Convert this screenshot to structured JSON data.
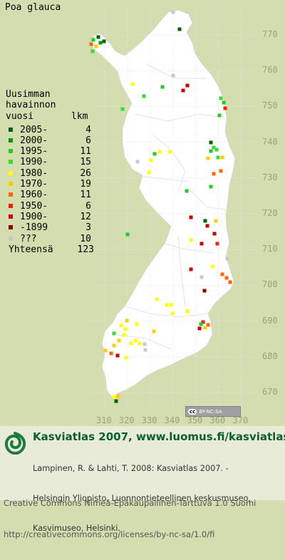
{
  "species": "Poa glauca",
  "legend": {
    "header": [
      "Uusimman",
      "havainnon",
      "vuosi"
    ],
    "count_header": "lkm",
    "rows": [
      {
        "label": "2005-",
        "count": "4",
        "color": "#006400"
      },
      {
        "label": "2000-",
        "count": "6",
        "color": "#009900"
      },
      {
        "label": "1995-",
        "count": "11",
        "color": "#22cc22"
      },
      {
        "label": "1990-",
        "count": "15",
        "color": "#33dd33"
      },
      {
        "label": "1980-",
        "count": "26",
        "color": "#ffff00"
      },
      {
        "label": "1970-",
        "count": "19",
        "color": "#ffcc00"
      },
      {
        "label": "1960-",
        "count": "11",
        "color": "#ff6600"
      },
      {
        "label": "1950-",
        "count": "6",
        "color": "#ee2200"
      },
      {
        "label": "1900-",
        "count": "12",
        "color": "#cc0000"
      },
      {
        "label": "-1899",
        "count": "3",
        "color": "#880000"
      },
      {
        "label": "???",
        "count": "10",
        "color": "#c8c8c8"
      }
    ],
    "total_label": "Yhteensä",
    "total_count": "123"
  },
  "axes": {
    "y_ticks": [
      "770",
      "760",
      "750",
      "740",
      "730",
      "720",
      "710",
      "700",
      "690",
      "680",
      "670"
    ],
    "x_ticks": [
      "310",
      "320",
      "330",
      "340",
      "350",
      "360",
      "370"
    ]
  },
  "colors": {
    "background": "#d4ddaf",
    "land": "#ffffff",
    "grid": "#dcdcdc",
    "footer": "#e8ebd8",
    "title": "#0c5e2f"
  },
  "license_badge": "BY-NC-SA",
  "footer": {
    "site_title": "Kasviatlas 2007, www.luomus.fi/kasviatlas",
    "citation": [
      "Lampinen, R. & Lahti, T. 2008: Kasviatlas 2007. -",
      "Helsingin Yliopisto, Luonnontieteellinen keskusmuseo,",
      "Kasvimuseo, Helsinki."
    ],
    "license": [
      "Creative Commons Nimeä-Epäkaupallinen-Tarttuva 1.0 Suomi",
      "http://creativecommons.org/licenses/by-nc-sa/1.0/fi"
    ]
  },
  "observations": [
    {
      "x": 252,
      "y": 41,
      "period": "2005-"
    },
    {
      "x": 243,
      "y": 17,
      "period": "???"
    },
    {
      "x": 138,
      "y": 52,
      "period": "2005-"
    },
    {
      "x": 131,
      "y": 56,
      "period": "1995-"
    },
    {
      "x": 146,
      "y": 58,
      "period": "2005-"
    },
    {
      "x": 128,
      "y": 62,
      "period": "1960-"
    },
    {
      "x": 135,
      "y": 65,
      "period": "1970-"
    },
    {
      "x": 130,
      "y": 72,
      "period": "1990-"
    },
    {
      "x": 141,
      "y": 60,
      "period": "2000-"
    },
    {
      "x": 186,
      "y": 118,
      "period": "1980-"
    },
    {
      "x": 228,
      "y": 122,
      "period": "1995-"
    },
    {
      "x": 243,
      "y": 106,
      "period": "???"
    },
    {
      "x": 263,
      "y": 120,
      "period": "1900-"
    },
    {
      "x": 257,
      "y": 127,
      "period": "1900-"
    },
    {
      "x": 202,
      "y": 135,
      "period": "1990-"
    },
    {
      "x": 310,
      "y": 138,
      "period": "1990-"
    },
    {
      "x": 314,
      "y": 144,
      "period": "1995-"
    },
    {
      "x": 316,
      "y": 152,
      "period": "1950-"
    },
    {
      "x": 172,
      "y": 153,
      "period": "1990-"
    },
    {
      "x": 308,
      "y": 162,
      "period": "1995-"
    },
    {
      "x": 296,
      "y": 200,
      "period": "2005-"
    },
    {
      "x": 300,
      "y": 207,
      "period": "1990-"
    },
    {
      "x": 296,
      "y": 212,
      "period": "1995-"
    },
    {
      "x": 304,
      "y": 210,
      "period": "1990-"
    },
    {
      "x": 292,
      "y": 222,
      "period": "1970-"
    },
    {
      "x": 306,
      "y": 221,
      "period": "1990-"
    },
    {
      "x": 312,
      "y": 221,
      "period": "1970-"
    },
    {
      "x": 310,
      "y": 240,
      "period": "1960-"
    },
    {
      "x": 300,
      "y": 244,
      "period": "1960-"
    },
    {
      "x": 296,
      "y": 262,
      "period": "1995-"
    },
    {
      "x": 217,
      "y": 216,
      "period": "1995-"
    },
    {
      "x": 224,
      "y": 213,
      "period": "1980-"
    },
    {
      "x": 238,
      "y": 213,
      "period": "1980-"
    },
    {
      "x": 212,
      "y": 225,
      "period": "1980-"
    },
    {
      "x": 193,
      "y": 227,
      "period": "???"
    },
    {
      "x": 209,
      "y": 242,
      "period": "1980-"
    },
    {
      "x": 262,
      "y": 268,
      "period": "1995-"
    },
    {
      "x": 268,
      "y": 305,
      "period": "1900-"
    },
    {
      "x": 288,
      "y": 310,
      "period": "2005-"
    },
    {
      "x": 303,
      "y": 310,
      "period": "1970-"
    },
    {
      "x": 291,
      "y": 317,
      "period": "1900-"
    },
    {
      "x": 301,
      "y": 328,
      "period": "1900-"
    },
    {
      "x": 268,
      "y": 337,
      "period": "1980-"
    },
    {
      "x": 283,
      "y": 342,
      "period": "1900-"
    },
    {
      "x": 305,
      "y": 342,
      "period": "1950-"
    },
    {
      "x": 179,
      "y": 329,
      "period": "1995-"
    },
    {
      "x": 319,
      "y": 363,
      "period": "???"
    },
    {
      "x": 298,
      "y": 374,
      "period": "1980-"
    },
    {
      "x": 312,
      "y": 385,
      "period": "1960-"
    },
    {
      "x": 318,
      "y": 390,
      "period": "1960-"
    },
    {
      "x": 323,
      "y": 396,
      "period": "1960-"
    },
    {
      "x": 268,
      "y": 378,
      "period": "1900-"
    },
    {
      "x": 283,
      "y": 389,
      "period": "???"
    },
    {
      "x": 287,
      "y": 408,
      "period": "-1899"
    },
    {
      "x": 234,
      "y": 428,
      "period": "1980-"
    },
    {
      "x": 240,
      "y": 428,
      "period": "1980-"
    },
    {
      "x": 220,
      "y": 420,
      "period": "1980-"
    },
    {
      "x": 242,
      "y": 440,
      "period": "1980-"
    },
    {
      "x": 263,
      "y": 437,
      "period": "1980-"
    },
    {
      "x": 178,
      "y": 450,
      "period": "1970-"
    },
    {
      "x": 170,
      "y": 457,
      "period": "1980-"
    },
    {
      "x": 176,
      "y": 462,
      "period": "1980-"
    },
    {
      "x": 192,
      "y": 455,
      "period": "1980-"
    },
    {
      "x": 160,
      "y": 468,
      "period": "1990-"
    },
    {
      "x": 174,
      "y": 470,
      "period": "1980-"
    },
    {
      "x": 190,
      "y": 478,
      "period": "1980-"
    },
    {
      "x": 167,
      "y": 478,
      "period": "1970-"
    },
    {
      "x": 184,
      "y": 482,
      "period": "1980-"
    },
    {
      "x": 160,
      "y": 485,
      "period": "1970-"
    },
    {
      "x": 148,
      "y": 492,
      "period": "1970-"
    },
    {
      "x": 156,
      "y": 496,
      "period": "1960-"
    },
    {
      "x": 165,
      "y": 499,
      "period": "1900-"
    },
    {
      "x": 177,
      "y": 502,
      "period": "1980-"
    },
    {
      "x": 196,
      "y": 482,
      "period": "1980-"
    },
    {
      "x": 203,
      "y": 483,
      "period": "???"
    },
    {
      "x": 204,
      "y": 491,
      "period": "???"
    },
    {
      "x": 216,
      "y": 465,
      "period": "1970-"
    },
    {
      "x": 285,
      "y": 452,
      "period": "1950-"
    },
    {
      "x": 292,
      "y": 456,
      "period": "1960-"
    },
    {
      "x": 288,
      "y": 460,
      "period": "1970-"
    },
    {
      "x": 282,
      "y": 455,
      "period": "1995-"
    },
    {
      "x": 280,
      "y": 461,
      "period": "1900-"
    },
    {
      "x": 160,
      "y": 557,
      "period": "1980-"
    },
    {
      "x": 166,
      "y": 556,
      "period": "1970-"
    },
    {
      "x": 163,
      "y": 563,
      "period": "2005-"
    }
  ]
}
